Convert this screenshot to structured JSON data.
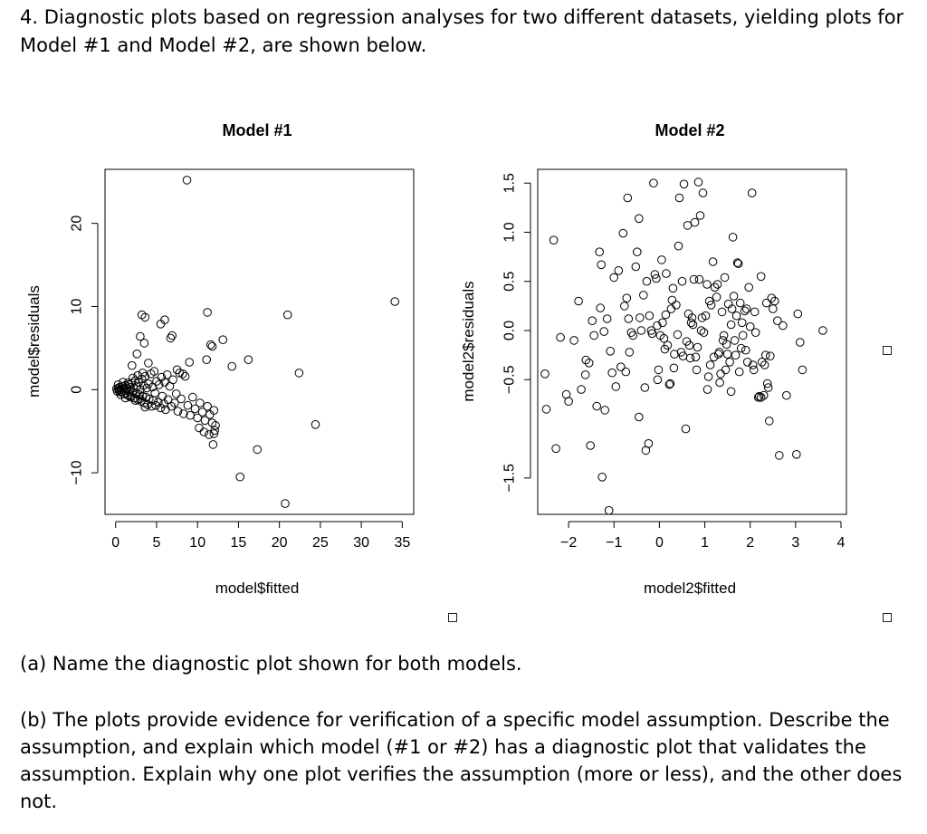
{
  "question": {
    "intro": "4. Diagnostic plots based on regression analyses for two different datasets, yielding plots for Model #1 and Model #2, are shown below.",
    "part_a": "(a) Name the diagnostic plot shown for both models.",
    "part_b": "(b) The plots provide evidence for verification of a specific model assumption. Describe the assumption, and explain which model (#1 or #2) has a diagnostic plot that validates the assumption. Explain why one plot verifies the assumption (more or less), and the other does not."
  },
  "chart_data": [
    {
      "type": "scatter",
      "title": "Model #1",
      "xlabel": "model$fitted",
      "ylabel": "model$residuals",
      "xlim": [
        -1.3,
        36.4
      ],
      "ylim": [
        -15.0,
        26.5
      ],
      "xticks": [
        0,
        5,
        10,
        15,
        20,
        25,
        30,
        35
      ],
      "yticks": [
        -10,
        0,
        10,
        20
      ],
      "grid": false,
      "marker": "open-circle",
      "points": [
        [
          0.1,
          0.1
        ],
        [
          0.2,
          -0.2
        ],
        [
          0.3,
          0.2
        ],
        [
          0.4,
          -0.1
        ],
        [
          0.5,
          0.0
        ],
        [
          0.5,
          0.3
        ],
        [
          0.6,
          -0.3
        ],
        [
          0.7,
          0.1
        ],
        [
          0.8,
          -0.2
        ],
        [
          0.9,
          0.4
        ],
        [
          1.0,
          -0.5
        ],
        [
          1.0,
          0.2
        ],
        [
          1.1,
          -0.1
        ],
        [
          1.2,
          0.5
        ],
        [
          1.3,
          -0.4
        ],
        [
          1.4,
          0.1
        ],
        [
          1.5,
          -0.7
        ],
        [
          1.6,
          0.6
        ],
        [
          1.7,
          -0.2
        ],
        [
          1.8,
          0.3
        ],
        [
          1.9,
          -0.8
        ],
        [
          2.0,
          0.8
        ],
        [
          2.1,
          -0.3
        ],
        [
          2.2,
          0.2
        ],
        [
          2.3,
          -1.0
        ],
        [
          2.4,
          1.1
        ],
        [
          2.5,
          -0.5
        ],
        [
          2.6,
          0.4
        ],
        [
          2.7,
          -1.2
        ],
        [
          2.8,
          0.9
        ],
        [
          2.9,
          -0.6
        ],
        [
          3.0,
          0.0
        ],
        [
          3.1,
          -1.4
        ],
        [
          3.2,
          1.3
        ],
        [
          3.3,
          -0.8
        ],
        [
          3.4,
          0.5
        ],
        [
          3.5,
          -1.6
        ],
        [
          3.6,
          1.6
        ],
        [
          3.7,
          -0.9
        ],
        [
          3.8,
          0.2
        ],
        [
          3.9,
          -1.8
        ],
        [
          4.0,
          0.7
        ],
        [
          4.1,
          -1.1
        ],
        [
          4.3,
          1.9
        ],
        [
          4.4,
          -2.0
        ],
        [
          4.5,
          0.3
        ],
        [
          4.6,
          -1.3
        ],
        [
          4.7,
          2.2
        ],
        [
          4.8,
          -0.4
        ],
        [
          4.9,
          -1.9
        ],
        [
          5.0,
          1.0
        ],
        [
          5.2,
          -1.5
        ],
        [
          5.3,
          0.6
        ],
        [
          5.5,
          -2.2
        ],
        [
          5.6,
          1.5
        ],
        [
          5.7,
          -0.8
        ],
        [
          5.9,
          -1.7
        ],
        [
          6.0,
          0.9
        ],
        [
          6.1,
          -2.4
        ],
        [
          6.3,
          1.8
        ],
        [
          6.4,
          -1.2
        ],
        [
          6.6,
          0.4
        ],
        [
          6.8,
          -2.0
        ],
        [
          7.0,
          1.2
        ],
        [
          7.2,
          -1.6
        ],
        [
          7.4,
          -0.5
        ],
        [
          7.6,
          -2.6
        ],
        [
          7.8,
          2.0
        ],
        [
          8.0,
          -1.1
        ],
        [
          8.3,
          -2.9
        ],
        [
          8.5,
          1.6
        ],
        [
          8.8,
          -1.9
        ],
        [
          9.1,
          -3.1
        ],
        [
          9.4,
          -0.9
        ],
        [
          9.7,
          -2.3
        ],
        [
          10.0,
          -3.4
        ],
        [
          10.3,
          -1.6
        ],
        [
          10.6,
          -2.7
        ],
        [
          10.9,
          -3.7
        ],
        [
          11.2,
          -2.0
        ],
        [
          11.5,
          -3.0
        ],
        [
          11.8,
          -4.0
        ],
        [
          12.0,
          -2.5
        ],
        [
          12.2,
          -4.3
        ],
        [
          0.3,
          0.6
        ],
        [
          0.6,
          -0.6
        ],
        [
          0.9,
          0.9
        ],
        [
          1.2,
          -1.0
        ],
        [
          1.5,
          0.8
        ],
        [
          1.8,
          -0.9
        ],
        [
          2.1,
          1.4
        ],
        [
          2.4,
          -1.3
        ],
        [
          2.7,
          1.7
        ],
        [
          3.0,
          -1.1
        ],
        [
          3.3,
          2.0
        ],
        [
          3.6,
          -2.1
        ],
        [
          2.0,
          2.9
        ],
        [
          2.6,
          4.3
        ],
        [
          3.0,
          6.4
        ],
        [
          3.5,
          5.6
        ],
        [
          4.0,
          3.2
        ],
        [
          5.5,
          7.9
        ],
        [
          6.7,
          6.2
        ],
        [
          7.5,
          2.4
        ],
        [
          8.2,
          1.9
        ],
        [
          9.0,
          3.3
        ],
        [
          10.2,
          -4.6
        ],
        [
          10.8,
          -5.1
        ],
        [
          11.4,
          -5.4
        ],
        [
          12.0,
          -5.3
        ],
        [
          11.9,
          -6.6
        ],
        [
          12.1,
          -4.9
        ],
        [
          11.6,
          5.4
        ],
        [
          11.1,
          3.6
        ],
        [
          13.1,
          6.0
        ],
        [
          14.2,
          2.8
        ],
        [
          16.2,
          3.6
        ],
        [
          3.2,
          9.0
        ],
        [
          3.6,
          8.7
        ],
        [
          6.0,
          8.4
        ],
        [
          6.9,
          6.5
        ],
        [
          11.2,
          9.3
        ],
        [
          11.8,
          5.2
        ],
        [
          8.7,
          25.2
        ],
        [
          15.2,
          -10.5
        ],
        [
          17.3,
          -7.2
        ],
        [
          20.7,
          -13.7
        ],
        [
          21.0,
          9.0
        ],
        [
          22.4,
          2.0
        ],
        [
          24.4,
          -4.2
        ],
        [
          34.1,
          10.6
        ]
      ]
    },
    {
      "type": "scatter",
      "title": "Model #2",
      "xlabel": "model2$fitted",
      "ylabel": "model2$residuals",
      "xlim": [
        -2.68,
        4.12
      ],
      "ylim": [
        -1.87,
        1.64
      ],
      "xticks": [
        -2,
        -1,
        0,
        1,
        2,
        3,
        4
      ],
      "yticks": [
        -1.5,
        -0.5,
        0.0,
        0.5,
        1.0,
        1.5
      ],
      "grid": false,
      "marker": "open-circle",
      "points": [
        [
          -2.52,
          -0.44
        ],
        [
          -2.49,
          -0.8
        ],
        [
          -2.33,
          0.92
        ],
        [
          -2.28,
          -1.2
        ],
        [
          -2.18,
          -0.07
        ],
        [
          -2.05,
          -0.65
        ],
        [
          -2.0,
          -0.72
        ],
        [
          -1.88,
          -0.1
        ],
        [
          -1.78,
          0.3
        ],
        [
          -1.72,
          -0.6
        ],
        [
          -1.63,
          -0.45
        ],
        [
          -1.62,
          -0.3
        ],
        [
          -1.55,
          -0.33
        ],
        [
          -1.52,
          -1.17
        ],
        [
          -1.48,
          0.1
        ],
        [
          -1.44,
          -0.05
        ],
        [
          -1.38,
          -0.77
        ],
        [
          -1.32,
          0.8
        ],
        [
          -1.3,
          0.23
        ],
        [
          -1.28,
          0.67
        ],
        [
          -1.26,
          -1.49
        ],
        [
          -1.22,
          -0.01
        ],
        [
          -1.2,
          -0.81
        ],
        [
          -1.15,
          0.12
        ],
        [
          -1.11,
          -1.83
        ],
        [
          -1.08,
          -0.21
        ],
        [
          -1.04,
          -0.43
        ],
        [
          -1.0,
          0.54
        ],
        [
          -0.96,
          -0.57
        ],
        [
          -0.9,
          0.61
        ],
        [
          -0.85,
          -0.37
        ],
        [
          -0.8,
          0.99
        ],
        [
          -0.77,
          0.25
        ],
        [
          -0.74,
          -0.42
        ],
        [
          -0.72,
          0.33
        ],
        [
          -0.7,
          1.35
        ],
        [
          -0.68,
          0.12
        ],
        [
          -0.66,
          -0.22
        ],
        [
          -0.62,
          -0.02
        ],
        [
          -0.58,
          -0.05
        ],
        [
          -0.52,
          0.65
        ],
        [
          -0.49,
          0.8
        ],
        [
          -0.45,
          1.14
        ],
        [
          -0.45,
          -0.88
        ],
        [
          -0.43,
          0.13
        ],
        [
          -0.4,
          0.0
        ],
        [
          -0.35,
          0.36
        ],
        [
          -0.32,
          -0.58
        ],
        [
          -0.3,
          -1.22
        ],
        [
          -0.28,
          0.5
        ],
        [
          -0.24,
          -1.15
        ],
        [
          -0.22,
          0.15
        ],
        [
          -0.18,
          0.0
        ],
        [
          -0.16,
          -0.03
        ],
        [
          -0.13,
          1.5
        ],
        [
          -0.1,
          0.57
        ],
        [
          -0.07,
          0.53
        ],
        [
          -0.05,
          0.05
        ],
        [
          -0.04,
          -0.5
        ],
        [
          -0.02,
          -0.4
        ],
        [
          0.02,
          -0.05
        ],
        [
          0.05,
          0.72
        ],
        [
          0.07,
          0.08
        ],
        [
          0.1,
          -0.08
        ],
        [
          0.12,
          -0.19
        ],
        [
          0.14,
          0.16
        ],
        [
          0.15,
          0.58
        ],
        [
          0.18,
          -0.15
        ],
        [
          0.22,
          -0.55
        ],
        [
          0.24,
          -0.54
        ],
        [
          0.26,
          0.22
        ],
        [
          0.28,
          0.31
        ],
        [
          0.32,
          -0.38
        ],
        [
          0.33,
          -0.24
        ],
        [
          0.37,
          0.26
        ],
        [
          0.4,
          -0.04
        ],
        [
          0.42,
          0.86
        ],
        [
          0.44,
          1.35
        ],
        [
          0.48,
          -0.22
        ],
        [
          0.5,
          0.5
        ],
        [
          0.52,
          -0.26
        ],
        [
          0.54,
          1.49
        ],
        [
          0.58,
          -1.0
        ],
        [
          0.6,
          -0.11
        ],
        [
          0.62,
          1.07
        ],
        [
          0.64,
          0.17
        ],
        [
          0.66,
          -0.15
        ],
        [
          0.68,
          -0.28
        ],
        [
          0.7,
          0.08
        ],
        [
          0.72,
          0.13
        ],
        [
          0.74,
          0.06
        ],
        [
          0.76,
          0.52
        ],
        [
          0.78,
          1.1
        ],
        [
          0.8,
          -0.27
        ],
        [
          0.82,
          -0.4
        ],
        [
          0.86,
          1.51
        ],
        [
          0.88,
          0.52
        ],
        [
          0.9,
          1.17
        ],
        [
          0.92,
          0.0
        ],
        [
          0.94,
          0.13
        ],
        [
          0.96,
          1.4
        ],
        [
          0.98,
          -0.02
        ],
        [
          1.02,
          0.15
        ],
        [
          1.05,
          0.47
        ],
        [
          1.06,
          -0.6
        ],
        [
          1.08,
          -0.47
        ],
        [
          1.1,
          0.3
        ],
        [
          1.12,
          -0.35
        ],
        [
          1.14,
          0.26
        ],
        [
          1.18,
          0.7
        ],
        [
          1.2,
          -0.27
        ],
        [
          1.22,
          0.44
        ],
        [
          1.26,
          0.34
        ],
        [
          1.28,
          0.47
        ],
        [
          1.3,
          -0.24
        ],
        [
          1.32,
          -0.22
        ],
        [
          1.33,
          -0.53
        ],
        [
          1.35,
          -0.44
        ],
        [
          1.38,
          0.19
        ],
        [
          1.4,
          -0.1
        ],
        [
          1.42,
          -0.05
        ],
        [
          1.44,
          0.54
        ],
        [
          1.46,
          -0.4
        ],
        [
          1.48,
          -0.14
        ],
        [
          1.5,
          -0.24
        ],
        [
          1.52,
          0.27
        ],
        [
          1.55,
          -0.32
        ],
        [
          1.58,
          0.06
        ],
        [
          1.6,
          0.22
        ],
        [
          1.62,
          0.95
        ],
        [
          1.64,
          0.35
        ],
        [
          1.66,
          -0.1
        ],
        [
          1.68,
          -0.25
        ],
        [
          1.7,
          0.15
        ],
        [
          1.72,
          0.69
        ],
        [
          1.74,
          0.68
        ],
        [
          1.76,
          -0.42
        ],
        [
          1.78,
          0.28
        ],
        [
          1.8,
          -0.18
        ],
        [
          1.82,
          0.08
        ],
        [
          1.84,
          -0.05
        ],
        [
          1.88,
          0.2
        ],
        [
          1.9,
          -0.2
        ],
        [
          1.92,
          0.22
        ],
        [
          1.94,
          -0.32
        ],
        [
          1.97,
          0.44
        ],
        [
          2.0,
          0.04
        ],
        [
          2.04,
          1.4
        ],
        [
          2.06,
          -0.35
        ],
        [
          2.08,
          -0.4
        ],
        [
          2.1,
          0.19
        ],
        [
          2.12,
          -0.02
        ],
        [
          2.18,
          -0.68
        ],
        [
          2.2,
          -0.67
        ],
        [
          2.24,
          -0.68
        ],
        [
          2.26,
          -0.32
        ],
        [
          2.3,
          -0.66
        ],
        [
          2.32,
          -0.35
        ],
        [
          2.34,
          -0.25
        ],
        [
          2.36,
          0.28
        ],
        [
          2.38,
          -0.54
        ],
        [
          2.4,
          -0.58
        ],
        [
          2.42,
          -0.92
        ],
        [
          2.44,
          -0.26
        ],
        [
          2.47,
          0.33
        ],
        [
          2.5,
          0.22
        ],
        [
          2.54,
          0.3
        ],
        [
          2.6,
          0.1
        ],
        [
          2.64,
          -1.27
        ],
        [
          2.72,
          0.05
        ],
        [
          2.8,
          -0.66
        ],
        [
          3.02,
          -1.26
        ],
        [
          3.05,
          0.17
        ],
        [
          3.1,
          -0.12
        ],
        [
          3.15,
          -0.4
        ],
        [
          3.6,
          0.0
        ],
        [
          2.24,
          0.55
        ],
        [
          0.3,
          0.43
        ],
        [
          0.84,
          -0.17
        ],
        [
          1.58,
          -0.62
        ]
      ]
    }
  ]
}
